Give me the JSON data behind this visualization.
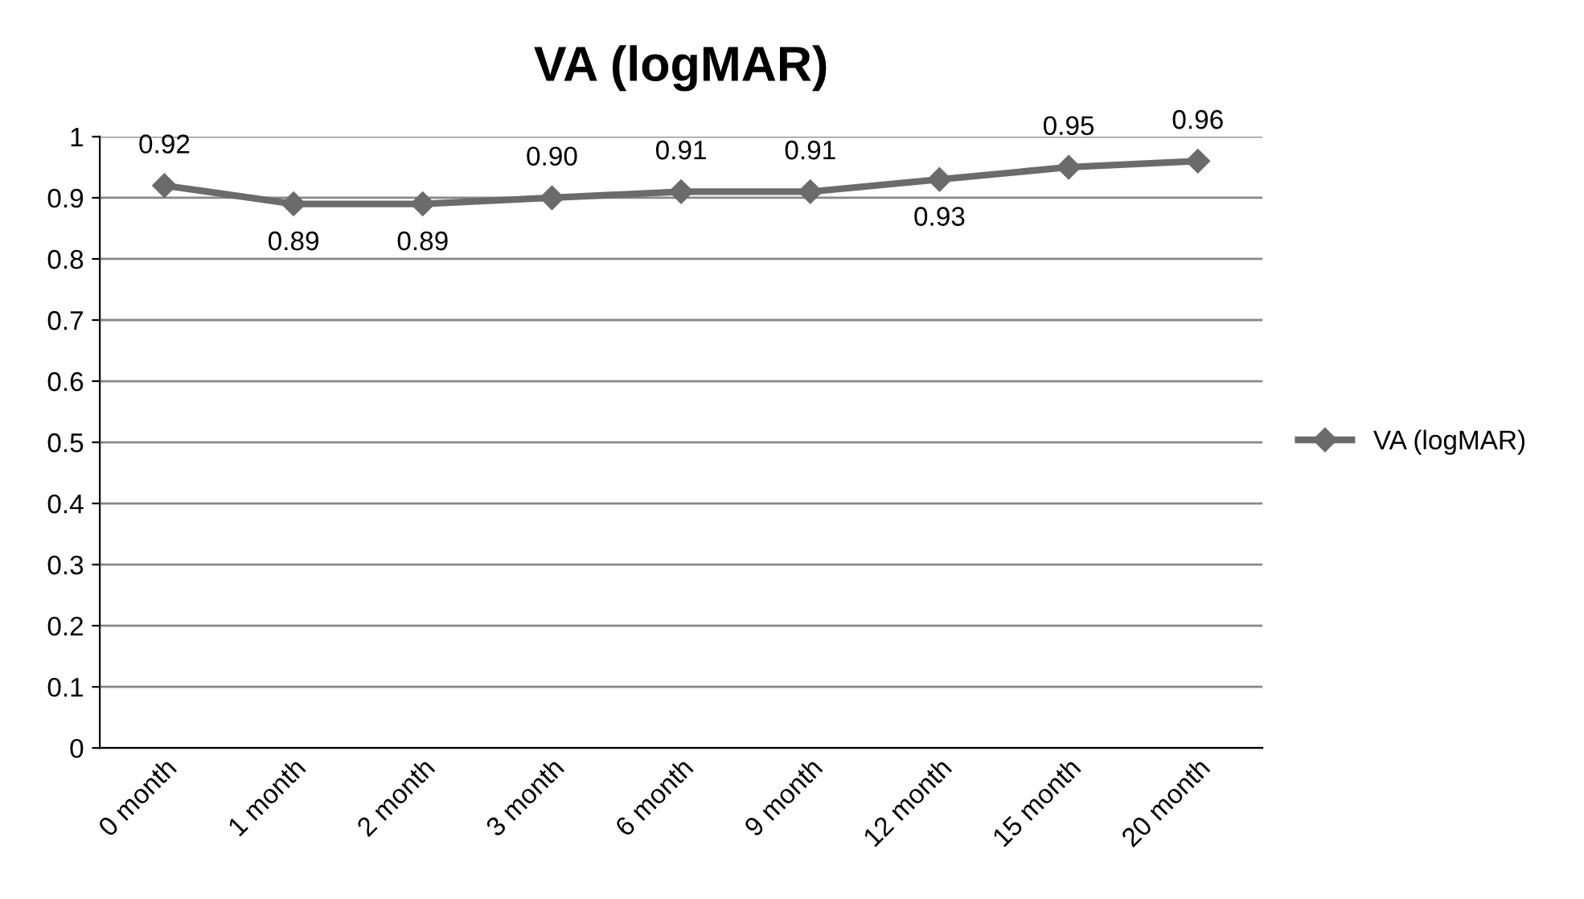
{
  "chart_data": {
    "type": "line",
    "title": "VA (logMAR)",
    "categories": [
      "0 month",
      "1 month",
      "2 month",
      "3 month",
      "6 month",
      "9 month",
      "12 month",
      "15 month",
      "20 month"
    ],
    "series": [
      {
        "name": "VA (logMAR)",
        "color": "#6b6b6b",
        "values": [
          0.92,
          0.89,
          0.89,
          0.9,
          0.91,
          0.91,
          0.93,
          0.95,
          0.96
        ],
        "value_labels": [
          "0.92",
          "0.89",
          "0.89",
          "0.90",
          "0.91",
          "0.91",
          "0.93",
          "0.95",
          "0.96"
        ]
      }
    ],
    "ylim": [
      0,
      1
    ],
    "yticks": [
      0,
      {
        "value": 0.1,
        "label": "0.1"
      },
      {
        "value": 0.2,
        "label": "0.2"
      },
      {
        "value": 0.3,
        "label": "0.3"
      },
      {
        "value": 0.4,
        "label": "0.4"
      },
      {
        "value": 0.5,
        "label": "0.5"
      },
      {
        "value": 0.6,
        "label": "0.6"
      },
      {
        "value": 0.7,
        "label": "0.7"
      },
      {
        "value": 0.8,
        "label": "0.8"
      },
      {
        "value": 0.9,
        "label": "0.9"
      },
      1
    ],
    "grid": "y",
    "legend": "right",
    "marker": "diamond",
    "line_style": "solid"
  }
}
